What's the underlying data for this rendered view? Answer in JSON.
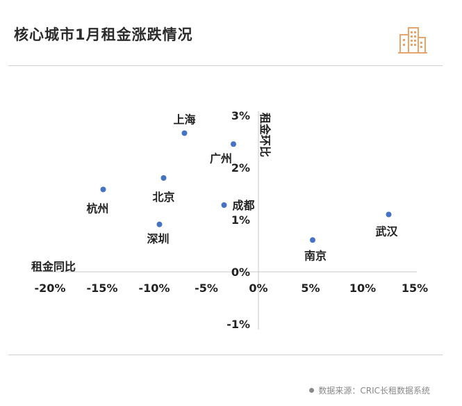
{
  "header": {
    "title": "核心城市1月租金涨跌情况"
  },
  "footer": {
    "source": "数据来源：CRIC长租数据系统"
  },
  "colors": {
    "point": "#4472c4",
    "axis": "#c8c8c8",
    "accent": "#e8a56b"
  },
  "icons": {
    "logo": "buildings-icon"
  },
  "chart_data": {
    "type": "scatter",
    "title": "核心城市1月租金涨跌情况",
    "xlabel": "租金同比",
    "ylabel": "租金环比",
    "xlim": [
      -20,
      15
    ],
    "ylim": [
      -1,
      3
    ],
    "x_ticks": [
      "-20%",
      "-15%",
      "-10%",
      "-5%",
      "0%",
      "5%",
      "10%",
      "15%"
    ],
    "y_ticks": [
      "-1%",
      "0%",
      "1%",
      "2%",
      "3%"
    ],
    "grid": false,
    "points": [
      {
        "label": "上海",
        "x": -7.1,
        "y": 2.66
      },
      {
        "label": "广州",
        "x": -2.4,
        "y": 2.45
      },
      {
        "label": "北京",
        "x": -9.1,
        "y": 1.8
      },
      {
        "label": "杭州",
        "x": -14.9,
        "y": 1.58
      },
      {
        "label": "成都",
        "x": -3.3,
        "y": 1.28
      },
      {
        "label": "深圳",
        "x": -9.5,
        "y": 0.91
      },
      {
        "label": "武汉",
        "x": 12.5,
        "y": 1.1
      },
      {
        "label": "南京",
        "x": 5.2,
        "y": 0.61
      }
    ]
  }
}
